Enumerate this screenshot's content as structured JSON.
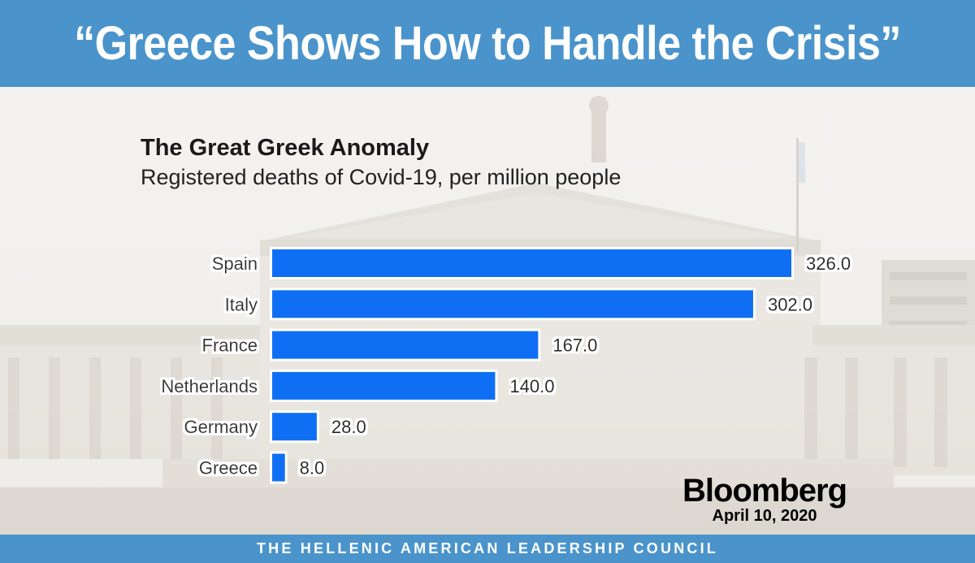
{
  "header": {
    "headline": "“Greece Shows How to Handle the Crisis”"
  },
  "chart_data": {
    "type": "bar",
    "orientation": "horizontal",
    "title": "The Great Greek Anomaly",
    "subtitle": "Registered deaths of Covid-19, per million people",
    "categories": [
      "Spain",
      "Italy",
      "France",
      "Netherlands",
      "Germany",
      "Greece"
    ],
    "values": [
      326.0,
      302.0,
      167.0,
      140.0,
      28.0,
      8.0
    ],
    "value_labels": [
      "326.0",
      "302.0",
      "167.0",
      "140.0",
      "28.0",
      "8.0"
    ],
    "xlim": [
      0,
      326
    ],
    "grid": false,
    "legend": "none",
    "bar_color": "#0f6ff4"
  },
  "brand": {
    "name": "Bloomberg",
    "date": "April 10, 2020"
  },
  "footer": {
    "text": "THE HELLENIC AMERICAN LEADERSHIP COUNCIL"
  },
  "colors": {
    "banner": "#4a94cb",
    "bar": "#0f6ff4"
  }
}
